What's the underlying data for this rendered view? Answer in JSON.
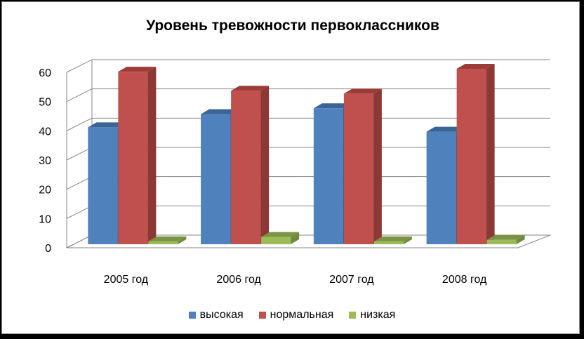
{
  "chart_data": {
    "type": "bar",
    "title": "Уровень тревожности первоклассников",
    "categories": [
      "2005 год",
      "2006 год",
      "2007 год",
      "2008 год"
    ],
    "series": [
      {
        "name": "высокая",
        "values": [
          40,
          44.5,
          46.5,
          38.5
        ],
        "color": "#4F81BD",
        "side": "#385D8A",
        "top": "#3A6496"
      },
      {
        "name": "нормальная",
        "values": [
          59,
          52.5,
          51.5,
          60
        ],
        "color": "#C0504D",
        "side": "#8C3836",
        "top": "#9B3C39"
      },
      {
        "name": "низкая",
        "values": [
          1,
          2.5,
          1,
          1.5
        ],
        "color": "#9BBB59",
        "side": "#71893F",
        "top": "#7A9444"
      }
    ],
    "yticks": [
      0,
      10,
      20,
      30,
      40,
      50,
      60
    ],
    "ylim": [
      0,
      60
    ],
    "grid": true,
    "legend_position": "bottom",
    "style": "3d-clustered-column"
  }
}
